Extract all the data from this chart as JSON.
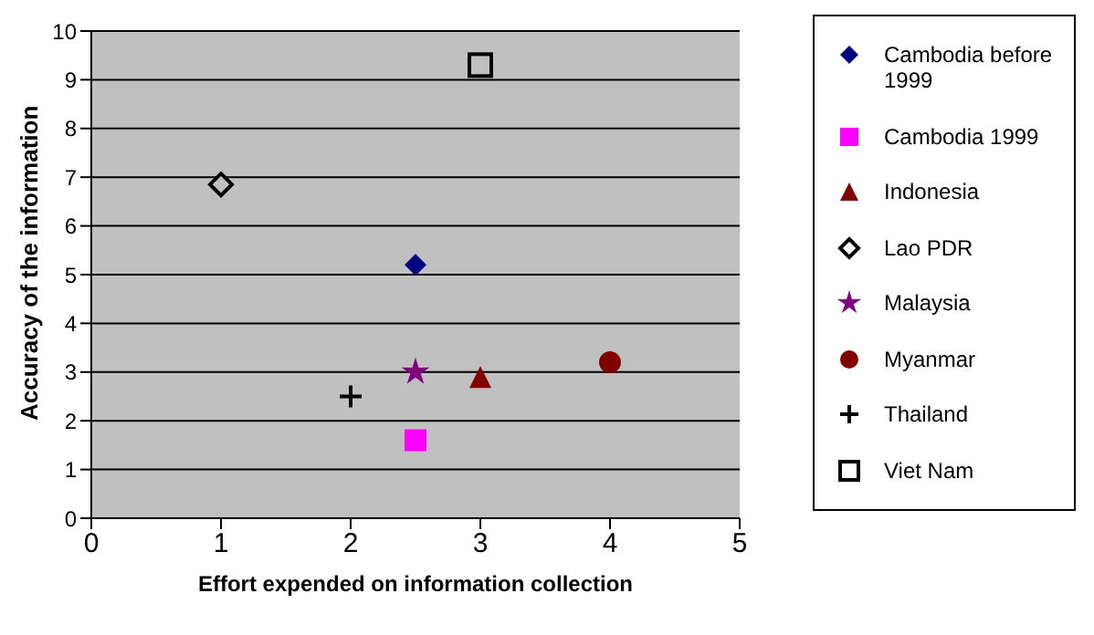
{
  "chart_data": {
    "type": "scatter",
    "xlabel": "Effort expended on information collection",
    "ylabel": "Accuracy of the information",
    "xlim": [
      0,
      5
    ],
    "xticks": [
      0,
      1,
      2,
      3,
      4,
      5
    ],
    "ylim": [
      0,
      10
    ],
    "yticks": [
      0,
      1,
      2,
      3,
      4,
      5,
      6,
      7,
      8,
      9,
      10
    ],
    "grid": "y",
    "legend": "right",
    "series": [
      {
        "name": "Cambodia before 1999",
        "color": "#000080",
        "marker": "diamond",
        "x": [
          2.5
        ],
        "values": [
          5.2
        ]
      },
      {
        "name": "Cambodia 1999",
        "color": "#ff00ff",
        "marker": "square",
        "x": [
          2.5
        ],
        "values": [
          1.6
        ]
      },
      {
        "name": "Indonesia",
        "color": "#800000",
        "marker": "triangle",
        "x": [
          3
        ],
        "values": [
          2.9
        ]
      },
      {
        "name": "Lao PDR",
        "color": "#000000",
        "marker": "diamond-open",
        "x": [
          1
        ],
        "values": [
          6.85
        ]
      },
      {
        "name": "Malaysia",
        "color": "#800080",
        "marker": "star",
        "x": [
          2.5
        ],
        "values": [
          3.0
        ]
      },
      {
        "name": "Myanmar",
        "color": "#800000",
        "marker": "circle",
        "x": [
          4
        ],
        "values": [
          3.2
        ]
      },
      {
        "name": "Thailand",
        "color": "#000000",
        "marker": "cross",
        "x": [
          2
        ],
        "values": [
          2.5
        ]
      },
      {
        "name": "Viet Nam",
        "color": "#000000",
        "marker": "square-open",
        "x": [
          3
        ],
        "values": [
          9.3
        ]
      }
    ]
  }
}
